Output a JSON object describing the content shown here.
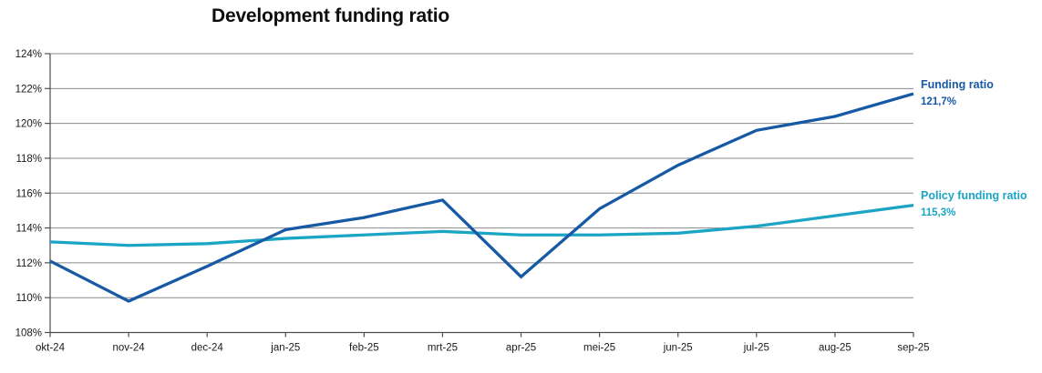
{
  "chart": {
    "title": "Development funding ratio"
  },
  "chart_data": {
    "type": "line",
    "title": "Development funding ratio",
    "categories": [
      "okt-24",
      "nov-24",
      "dec-24",
      "jan-25",
      "feb-25",
      "mrt-25",
      "apr-25",
      "mei-25",
      "jun-25",
      "jul-25",
      "aug-25",
      "sep-25"
    ],
    "series": [
      {
        "name": "Funding ratio",
        "end_label": "121,7%",
        "color": "#1659A4",
        "values": [
          112.1,
          109.8,
          111.8,
          113.9,
          114.6,
          115.6,
          111.2,
          115.1,
          117.6,
          119.6,
          120.4,
          121.7
        ]
      },
      {
        "name": "Policy funding ratio",
        "end_label": "115,3%",
        "color": "#1AA5C4",
        "values": [
          113.2,
          113.0,
          113.1,
          113.4,
          113.6,
          113.8,
          113.6,
          113.6,
          113.7,
          114.1,
          114.7,
          115.3
        ]
      }
    ],
    "ylim": [
      108,
      124
    ],
    "y_tick_step": 2,
    "y_tick_labels": [
      "108%",
      "110%",
      "112%",
      "114%",
      "116%",
      "118%",
      "120%",
      "122%",
      "124%"
    ],
    "grid": "horizontal",
    "legend_position": "right-end-labels",
    "colors": {
      "gridline": "#8A8A8A",
      "axis": "#4D4D4D",
      "tick_text": "#1A1A1A"
    }
  }
}
